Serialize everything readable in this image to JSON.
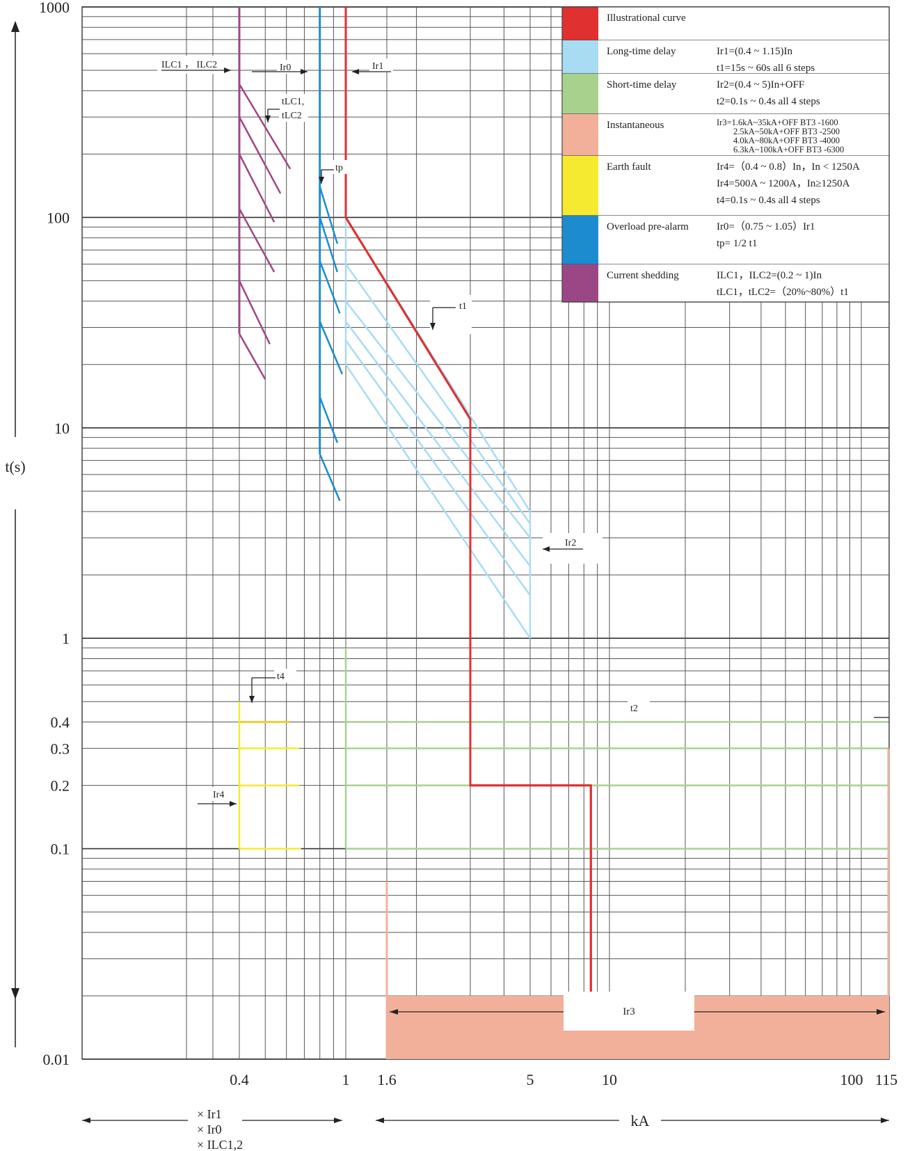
{
  "chart_data": {
    "type": "line",
    "title": "",
    "ylabel": "t(s)",
    "xlabel_left": [
      "× Ir1",
      "× Ir0",
      "× ILC1,2"
    ],
    "xlabel_right": "kA",
    "yscale": "log",
    "ylim": [
      0.01,
      1000
    ],
    "y_ticks": [
      {
        "v": 1000,
        "label": "1000"
      },
      {
        "v": 100,
        "label": "100"
      },
      {
        "v": 10,
        "label": "10"
      },
      {
        "v": 1,
        "label": "1"
      },
      {
        "v": 0.4,
        "label": "0.4"
      },
      {
        "v": 0.3,
        "label": "0.3"
      },
      {
        "v": 0.2,
        "label": "0.2"
      },
      {
        "v": 0.1,
        "label": "0.1"
      },
      {
        "v": 0.01,
        "label": "0.01"
      }
    ],
    "x_ticks": [
      {
        "v": 0.4,
        "label": "0.4"
      },
      {
        "v": 1,
        "label": "1"
      },
      {
        "v": 1.6,
        "label": "1.6"
      },
      {
        "v": 5,
        "label": "5"
      },
      {
        "v": 10,
        "label": "10"
      },
      {
        "v": 100,
        "label": "100"
      },
      {
        "v": 115,
        "label": "115"
      }
    ],
    "legend": [
      {
        "name": "Illustrational curve",
        "color": "#e03030",
        "lines": []
      },
      {
        "name": "Long-time delay",
        "color": "#a8dcf2",
        "lines": [
          "Ir1=(0.4 ~ 1.15)In",
          "t1=15s ~ 60s all 6 steps"
        ]
      },
      {
        "name": "Short-time delay",
        "color": "#a9d18e",
        "lines": [
          "Ir2=(0.4 ~ 5)In+OFF",
          "t2=0.1s ~ 0.4s all 4 steps"
        ]
      },
      {
        "name": "Instantaneous",
        "color": "#f2b09a",
        "lines": [
          "Ir3=1.6kA~35kA+OFF BT3 -1600",
          "2.5kA~50kA+OFF BT3 -2500",
          "4.0kA~80kA+OFF BT3 -4000",
          "6.3kA~100kA+OFF BT3 -6300"
        ]
      },
      {
        "name": "Earth fault",
        "color": "#f5ea30",
        "lines": [
          "Ir4=（0.4 ~ 0.8）In，In < 1250A",
          "Ir4=500A ~ 1200A，In≥1250A",
          "t4=0.1s ~ 0.4s all 4 steps"
        ]
      },
      {
        "name": "Overload pre-alarm",
        "color": "#1c8ccf",
        "lines": [
          "Ir0=（0.75 ~ 1.05）Ir1",
          "tp= 1/2 t1"
        ]
      },
      {
        "name": "Current shedding",
        "color": "#9c4785",
        "lines": [
          "ILC1，ILC2=(0.2 ~ 1)In",
          "tLC1，tLC2=（20%~80%）t1"
        ]
      }
    ],
    "annotations": [
      "ILC1 ，  ILC2",
      "Ir0",
      "Ir1",
      "tLC1,",
      "tLC2",
      "tp",
      "t1",
      "Ir2",
      "t4",
      "t2",
      "Ir4",
      "Ir3"
    ],
    "series": [
      {
        "name": "Illustrational curve",
        "color": "#e03030",
        "points": [
          [
            1,
            1000
          ],
          [
            1,
            100
          ],
          [
            3,
            11
          ],
          [
            3,
            0.2
          ],
          [
            8.5,
            0.2
          ],
          [
            8.5,
            0.02
          ]
        ]
      },
      {
        "name": "Earth fault t4=0.4s",
        "color": "#e03030",
        "points": [
          [
            0.4,
            0.4
          ],
          [
            0.62,
            0.4
          ]
        ]
      },
      {
        "name": "Current shedding",
        "color": "#9c4785",
        "points": [
          [
            0.4,
            1000
          ],
          [
            0.4,
            28
          ]
        ],
        "hatch": [
          [
            0.4,
            430,
            0.62,
            170
          ],
          [
            0.4,
            300,
            0.57,
            130
          ],
          [
            0.4,
            200,
            0.54,
            95
          ],
          [
            0.4,
            110,
            0.54,
            55
          ],
          [
            0.4,
            50,
            0.52,
            25
          ],
          [
            0.4,
            28,
            0.5,
            17
          ]
        ]
      },
      {
        "name": "Overload pre-alarm",
        "color": "#1c8ccf",
        "points": [
          [
            0.8,
            1000
          ],
          [
            0.8,
            7.5
          ]
        ],
        "hatch": [
          [
            0.8,
            140,
            0.93,
            75
          ],
          [
            0.8,
            100,
            0.93,
            55
          ],
          [
            0.8,
            62,
            0.95,
            35
          ],
          [
            0.8,
            32,
            0.97,
            18
          ],
          [
            0.8,
            14,
            0.93,
            8.5
          ],
          [
            0.8,
            7.5,
            0.95,
            4.5
          ]
        ]
      },
      {
        "name": "Long-time delay",
        "color": "#a8dcf2",
        "bands_t_at_Ir1": [
          100,
          60,
          40,
          32,
          26,
          20
        ],
        "band_end_x": 5,
        "band_end_t": [
          4,
          3.5,
          3,
          2.2,
          1.6,
          1
        ]
      },
      {
        "name": "Short-time delay",
        "color": "#a9d18e",
        "start_x": 1,
        "end_x": 115,
        "t_values": [
          0.4,
          0.3,
          0.2,
          0.1
        ],
        "top_t": 0.9
      },
      {
        "name": "Earth fault",
        "color": "#f5ea30",
        "start_x": 0.4,
        "t_values": [
          0.4,
          0.3,
          0.2,
          0.1
        ],
        "top_t": 0.5
      },
      {
        "name": "Instantaneous",
        "color": "#f2b09a",
        "x_range": [
          1.6,
          115
        ],
        "t_range": [
          0.01,
          0.02
        ]
      }
    ]
  }
}
